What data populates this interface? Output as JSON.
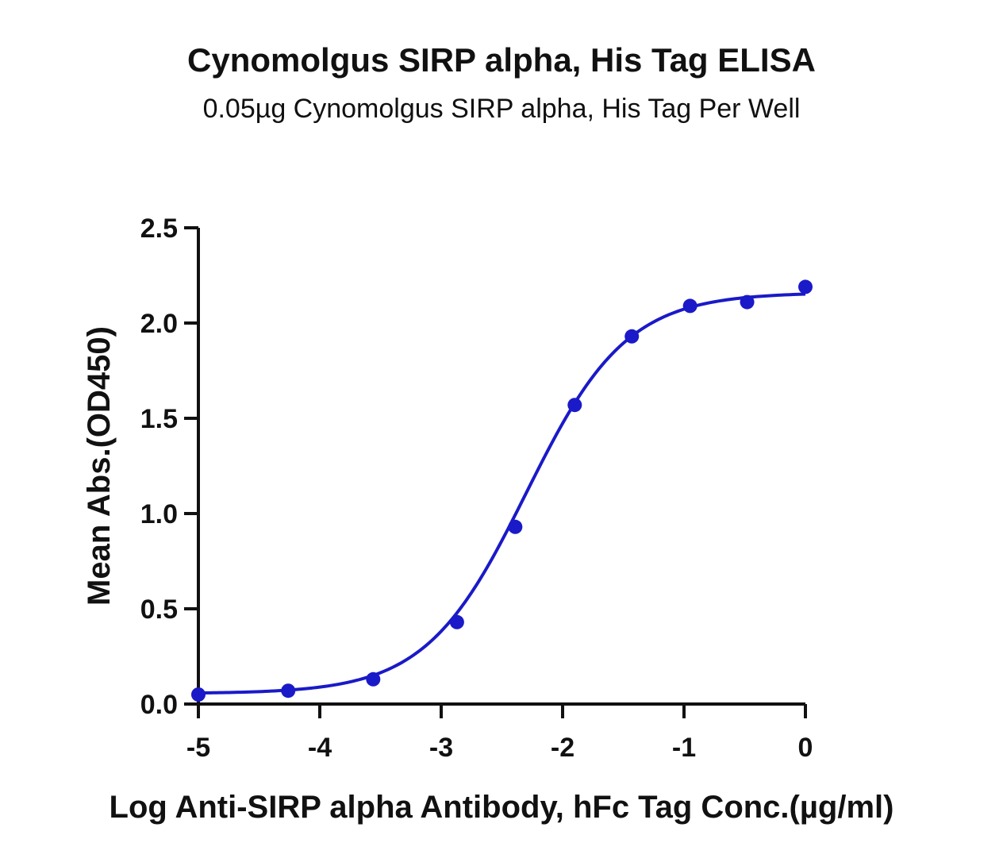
{
  "chart_data": {
    "type": "scatter",
    "title": "Cynomolgus SIRP alpha, His Tag ELISA",
    "subtitle": "0.05µg Cynomolgus SIRP alpha, His Tag Per Well",
    "xlabel": "Log Anti-SIRP alpha Antibody, hFc Tag Conc.(µg/ml)",
    "ylabel": "Mean Abs.(OD450)",
    "xlim": [
      -5,
      0
    ],
    "ylim": [
      0,
      2.5
    ],
    "xticks": [
      "-5",
      "-4",
      "-3",
      "-2",
      "-1",
      "0"
    ],
    "yticks": [
      "0.0",
      "0.5",
      "1.0",
      "1.5",
      "2.0",
      "2.5"
    ],
    "grid": false,
    "legend": "none",
    "color": "#1a1ac8",
    "series": [
      {
        "x": [
          -5.0,
          -4.26,
          -3.56,
          -2.87,
          -2.39,
          -1.9,
          -1.43,
          -0.95,
          -0.48,
          0.0
        ],
        "values": [
          0.05,
          0.07,
          0.13,
          0.43,
          0.93,
          1.57,
          1.93,
          2.09,
          2.11,
          2.19
        ]
      }
    ],
    "fit": {
      "model": "4PL",
      "bottom": 0.055,
      "top": 2.16,
      "log_ec50": -2.3,
      "hill": 1.05
    }
  }
}
